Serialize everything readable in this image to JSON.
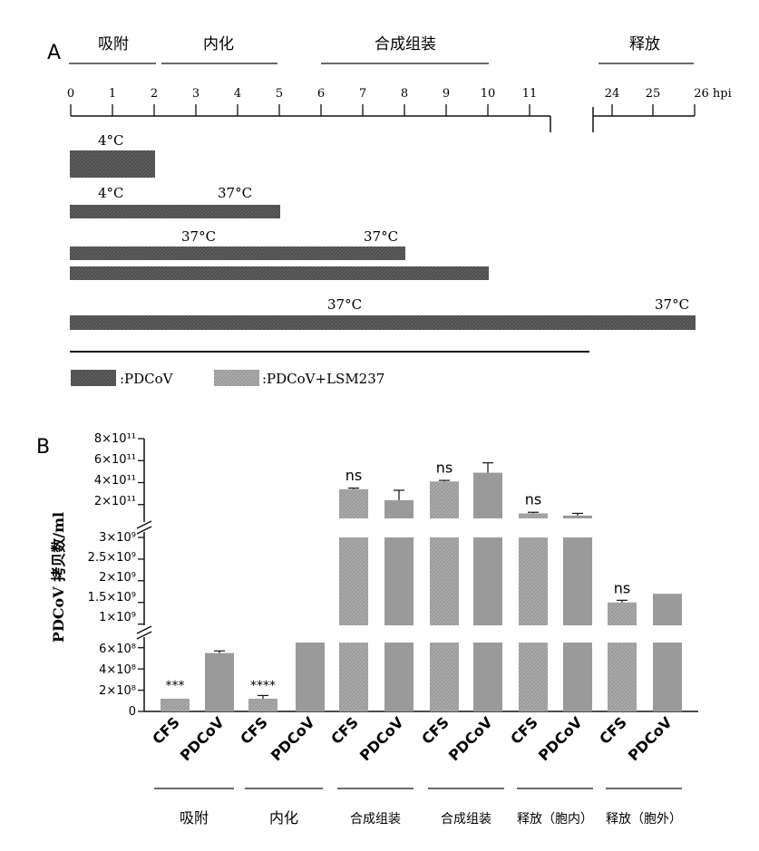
{
  "colors": {
    "bar_dark": "#4d4d4d",
    "bar_light": "#9a9a9a",
    "axis": "#111111"
  },
  "panelA": {
    "label": "A",
    "stages": [
      "吸附",
      "内化",
      "合成组装",
      "释放"
    ],
    "ticks": [
      "0",
      "1",
      "2",
      "3",
      "4",
      "5",
      "6",
      "7",
      "8",
      "9",
      "10",
      "11",
      "24",
      "25",
      "26 hpi"
    ],
    "temps": [
      "4°C",
      "4°C",
      "37°C",
      "37°C",
      "37°C",
      "37°C",
      "37°C"
    ],
    "legend": [
      ":PDCoV",
      ":PDCoV+LSM237"
    ]
  },
  "chart_data": {
    "type": "bar",
    "panel_label": "B",
    "ylabel": "PDCoV 拷贝数/ml",
    "x_tick_labels": [
      "CFS",
      "PDCoV",
      "CFS",
      "PDCoV",
      "CFS",
      "PDCoV",
      "CFS",
      "PDCoV",
      "CFS",
      "PDCoV",
      "CFS",
      "PDCoV"
    ],
    "groups": [
      "吸附",
      "内化",
      "合成组装",
      "合成组装",
      "释放（胞内）",
      "释放（胞外）"
    ],
    "values": [
      120000000.0,
      550000000.0,
      120000000.0,
      950000000.0,
      340000000000.0,
      240000000000.0,
      410000000000.0,
      490000000000.0,
      120000000000.0,
      100000000000.0,
      1500000000.0,
      1700000000.0
    ],
    "errors": [
      0,
      20000000.0,
      30000000.0,
      0,
      10000000000.0,
      90000000000.0,
      10000000000.0,
      90000000000.0,
      10000000000.0,
      20000000000.0,
      50000000.0,
      0
    ],
    "significance": [
      "***",
      "",
      "****",
      "",
      "ns",
      "",
      "ns",
      "",
      "ns",
      "",
      "ns",
      ""
    ],
    "y_segments": [
      {
        "range": [
          0,
          700000000.0
        ],
        "ticks": [
          "0",
          "2×10⁸",
          "4×10⁸",
          "6×10⁸"
        ]
      },
      {
        "range": [
          700000000.0,
          3000000000.0
        ],
        "ticks": [
          "1×10⁹",
          "1.5×10⁹",
          "2×10⁹",
          "2.5×10⁹",
          "3×10⁹"
        ]
      },
      {
        "range": [
          0,
          800000000000.0
        ],
        "ticks": [
          "2×10¹¹",
          "4×10¹¹",
          "6×10¹¹",
          "8×10¹¹"
        ]
      }
    ]
  }
}
